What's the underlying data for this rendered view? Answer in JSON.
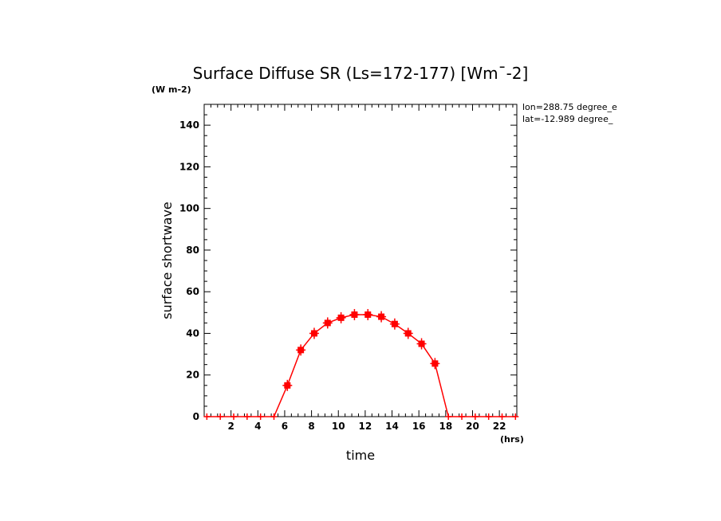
{
  "chart_data": {
    "type": "line",
    "title": "Surface Diffuse SR (Ls=172-177) [Wm¯-2]",
    "xlabel": "time",
    "ylabel": "surface shortwave",
    "xunit": "(hrs)",
    "yunit": "(W m-2)",
    "annotations": [
      "lon=288.75 degree_e",
      "lat=-12.989 degree_"
    ],
    "xlim": [
      0,
      23.3
    ],
    "ylim": [
      0,
      150
    ],
    "xticks": [
      2,
      4,
      6,
      8,
      10,
      12,
      14,
      16,
      18,
      20,
      22
    ],
    "yticks": [
      0,
      20,
      40,
      60,
      80,
      100,
      120,
      140
    ],
    "grid": false,
    "series": [
      {
        "color": "#ff0000",
        "x": [
          0.2,
          1.2,
          2.2,
          3.2,
          4.2,
          5.2,
          6.2,
          7.2,
          8.2,
          9.2,
          10.2,
          11.2,
          12.2,
          13.2,
          14.2,
          15.2,
          16.2,
          17.2,
          18.2,
          19.2,
          20.2,
          21.2,
          22.2,
          23.2
        ],
        "y": [
          0,
          0,
          0,
          0,
          0,
          0,
          15,
          32,
          40,
          45,
          47.5,
          49,
          49,
          48,
          44.5,
          40,
          35,
          25.5,
          0,
          0,
          0,
          0,
          0,
          0
        ]
      }
    ]
  }
}
